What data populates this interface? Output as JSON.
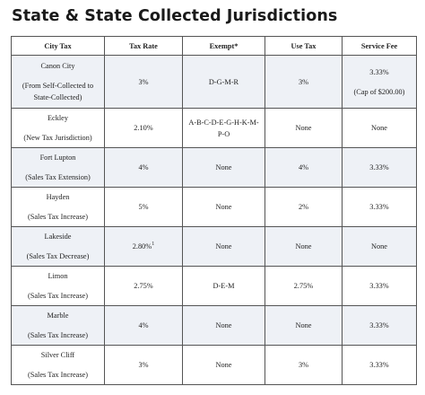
{
  "title": "State & State Collected Jurisdictions",
  "columns": [
    "City Tax",
    "Tax Rate",
    "Exempt*",
    "Use Tax",
    "Service Fee"
  ],
  "rows": [
    {
      "city": "Canon City",
      "note": "(From Self-Collected to State-Collected)",
      "rate": "3%",
      "rate_sup": "",
      "exempt": "D-G-M-R",
      "use_tax": "3%",
      "fee": "3.33%",
      "fee_note": "(Cap of $200.00)"
    },
    {
      "city": "Eckley",
      "note": "(New Tax Jurisdiction)",
      "rate": "2.10%",
      "rate_sup": "",
      "exempt": "A-B-C-D-E-G-H-K-M-P-O",
      "use_tax": "None",
      "fee": "None",
      "fee_note": ""
    },
    {
      "city": "Fort Lupton",
      "note": "(Sales Tax Extension)",
      "rate": "4%",
      "rate_sup": "",
      "exempt": "None",
      "use_tax": "4%",
      "fee": "3.33%",
      "fee_note": ""
    },
    {
      "city": "Hayden",
      "note": "(Sales Tax Increase)",
      "rate": "5%",
      "rate_sup": "",
      "exempt": "None",
      "use_tax": "2%",
      "fee": "3.33%",
      "fee_note": ""
    },
    {
      "city": "Lakeside",
      "note": "(Sales Tax Decrease)",
      "rate": "2.80%",
      "rate_sup": "1",
      "exempt": "None",
      "use_tax": "None",
      "fee": "None",
      "fee_note": ""
    },
    {
      "city": "Limon",
      "note": "(Sales Tax Increase)",
      "rate": "2.75%",
      "rate_sup": "",
      "exempt": "D-E-M",
      "use_tax": "2.75%",
      "fee": "3.33%",
      "fee_note": ""
    },
    {
      "city": "Marble",
      "note": "(Sales Tax Increase)",
      "rate": "4%",
      "rate_sup": "",
      "exempt": "None",
      "use_tax": "None",
      "fee": "3.33%",
      "fee_note": ""
    },
    {
      "city": "Silver Cliff",
      "note": "(Sales Tax Increase)",
      "rate": "3%",
      "rate_sup": "",
      "exempt": "None",
      "use_tax": "3%",
      "fee": "3.33%",
      "fee_note": ""
    }
  ]
}
